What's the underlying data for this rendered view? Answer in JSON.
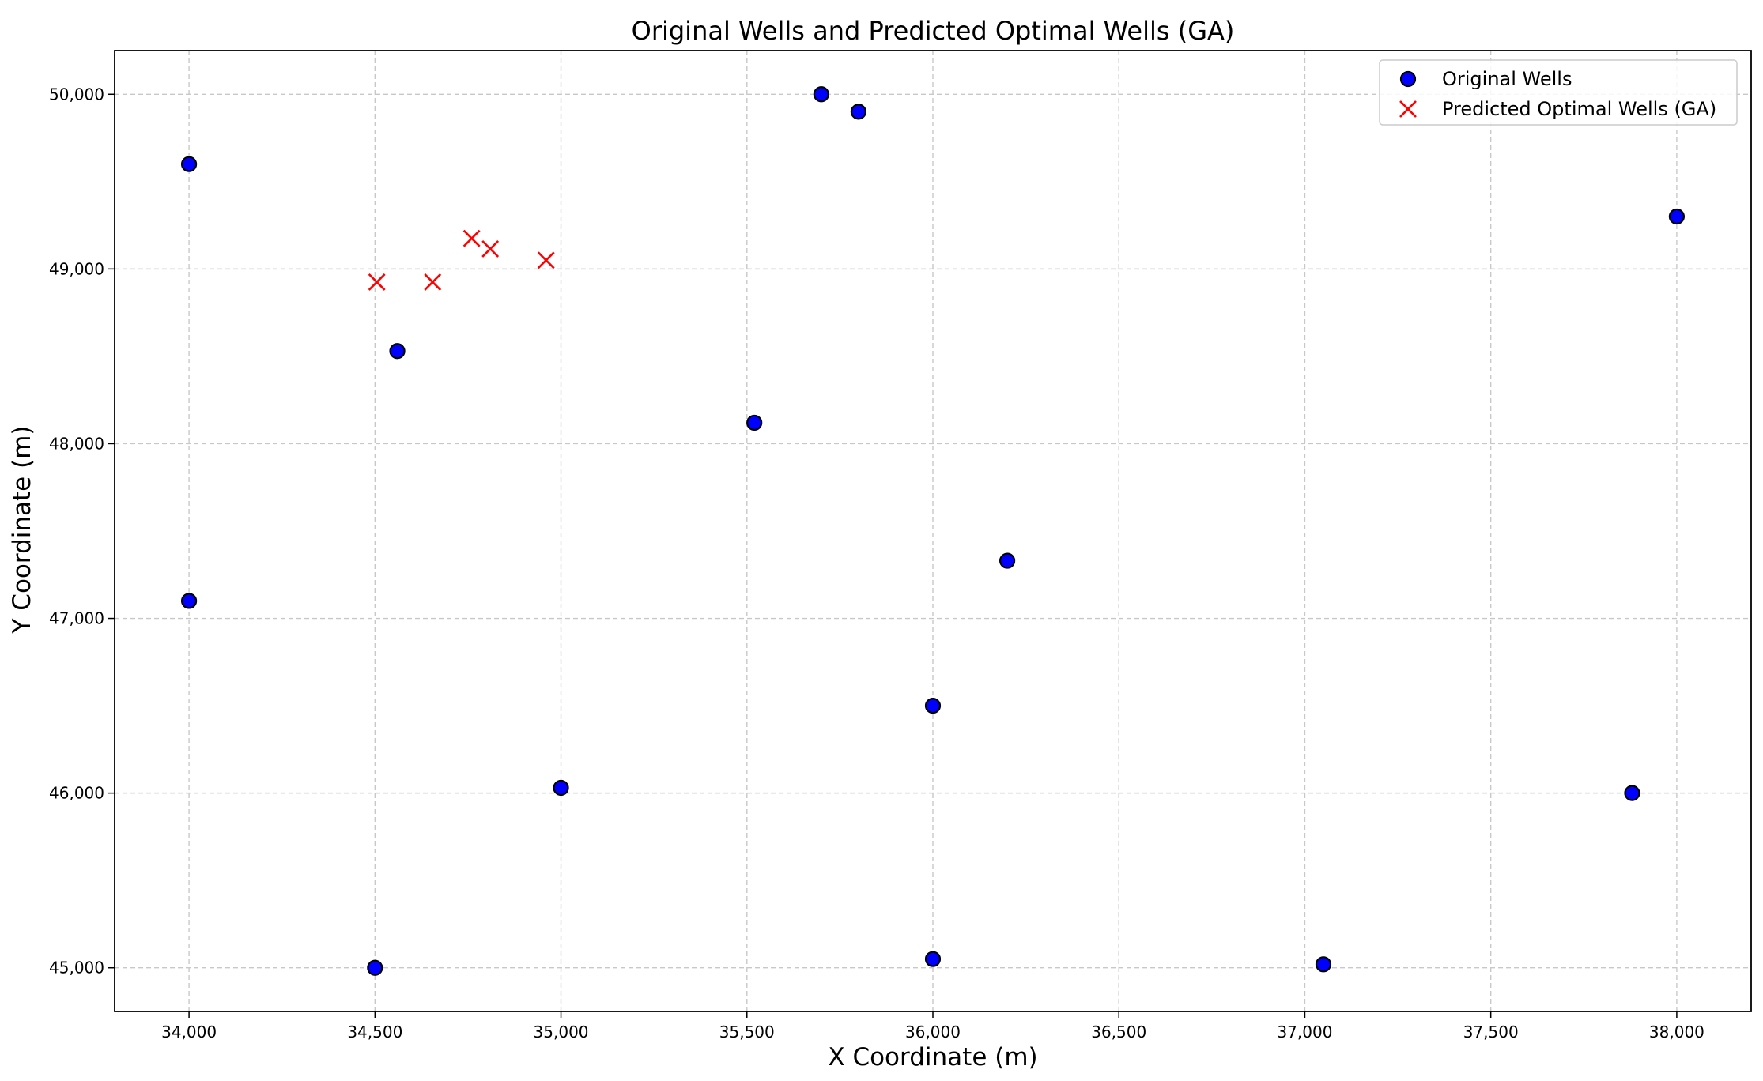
{
  "chart_data": {
    "type": "scatter",
    "title": "Original Wells and Predicted Optimal Wells (GA)",
    "xlabel": "X Coordinate (m)",
    "ylabel": "Y Coordinate (m)",
    "xlim": [
      33800,
      38200
    ],
    "ylim": [
      44750,
      50250
    ],
    "xticks": [
      34000,
      34500,
      35000,
      35500,
      36000,
      36500,
      37000,
      37500,
      38000
    ],
    "xtick_labels": [
      "34,000",
      "34,500",
      "35,000",
      "35,500",
      "36,000",
      "36,500",
      "37,000",
      "37,500",
      "38,000"
    ],
    "yticks": [
      45000,
      46000,
      47000,
      48000,
      49000,
      50000
    ],
    "ytick_labels": [
      "45,000",
      "46,000",
      "47,000",
      "48,000",
      "49,000",
      "50,000"
    ],
    "grid": true,
    "legend_position": "top-right",
    "series": [
      {
        "name": "Original Wells",
        "marker": "circle",
        "color": "#0000ff",
        "edge_color": "#000000",
        "points": [
          {
            "x": 34000,
            "y": 49600
          },
          {
            "x": 34560,
            "y": 48530
          },
          {
            "x": 34000,
            "y": 47100
          },
          {
            "x": 34500,
            "y": 45000
          },
          {
            "x": 35000,
            "y": 46030
          },
          {
            "x": 35520,
            "y": 48120
          },
          {
            "x": 35700,
            "y": 50000
          },
          {
            "x": 35800,
            "y": 49900
          },
          {
            "x": 36200,
            "y": 47330
          },
          {
            "x": 36000,
            "y": 46500
          },
          {
            "x": 36000,
            "y": 45050
          },
          {
            "x": 37050,
            "y": 45020
          },
          {
            "x": 37880,
            "y": 46000
          },
          {
            "x": 38000,
            "y": 49300
          }
        ]
      },
      {
        "name": "Predicted Optimal Wells (GA)",
        "marker": "x",
        "color": "#ff0000",
        "points": [
          {
            "x": 34505,
            "y": 48925
          },
          {
            "x": 34655,
            "y": 48925
          },
          {
            "x": 34760,
            "y": 49175
          },
          {
            "x": 34810,
            "y": 49115
          },
          {
            "x": 34960,
            "y": 49050
          }
        ]
      }
    ]
  }
}
